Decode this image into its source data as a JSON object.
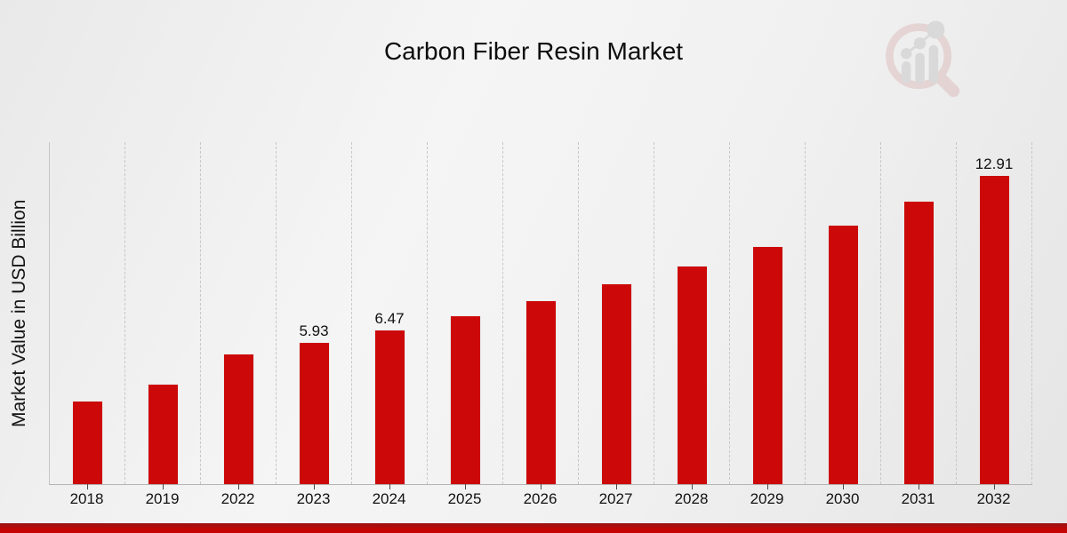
{
  "colors": {
    "bar": "#cc0808",
    "bar_border": "#ececec",
    "grid": "#c7c7c7",
    "axis": "#b4b4b4",
    "text": "#111111",
    "accent_band_top": "#9b1212",
    "accent_band_bottom": "#c60404",
    "watermark_pink": "#cf9393",
    "watermark_gray": "#a6a6a6"
  },
  "branding": {
    "logo": "magnifier-bar-chart-watermark"
  },
  "chart_data": {
    "type": "bar",
    "title": "Carbon Fiber Resin Market",
    "xlabel": "",
    "ylabel": "Market Value in USD Billion",
    "categories": [
      "2018",
      "2019",
      "2022",
      "2023",
      "2024",
      "2025",
      "2026",
      "2027",
      "2028",
      "2029",
      "2030",
      "2031",
      "2032"
    ],
    "values": [
      3.49,
      4.19,
      5.45,
      5.93,
      6.47,
      7.05,
      7.69,
      8.38,
      9.14,
      9.96,
      10.86,
      11.84,
      12.91
    ],
    "value_labels": [
      "",
      "",
      "",
      "5.93",
      "6.47",
      "",
      "",
      "",
      "",
      "",
      "",
      "",
      "12.91"
    ],
    "ylim": [
      0,
      14.3
    ],
    "grid": "vertical-dashed",
    "legend_position": "none",
    "bar_color": "#cc0808"
  }
}
